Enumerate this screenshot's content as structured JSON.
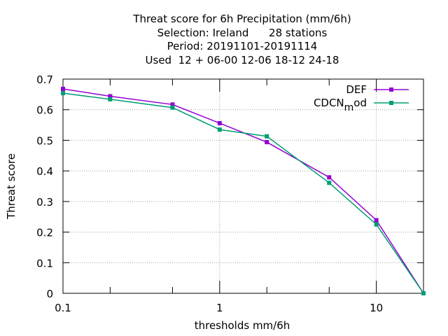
{
  "chart_data": {
    "type": "line",
    "title_lines": [
      "Threat score  for 6h Precipitation (mm/6h)",
      "Selection: Ireland      28 stations",
      "Period: 20191101-20191114",
      "Used  12 + 06-00 12-06 18-12 24-18"
    ],
    "xlabel": "thresholds mm/6h",
    "ylabel": "Threat score",
    "x_scale": "log",
    "xlim": [
      0.1,
      20
    ],
    "ylim": [
      0,
      0.7
    ],
    "x_ticks": [
      0.1,
      1,
      10
    ],
    "x_tick_labels": [
      "0.1",
      "1",
      "10"
    ],
    "x_minor_ticks": [
      0.2,
      0.5,
      2,
      5,
      20
    ],
    "y_ticks": [
      0,
      0.1,
      0.2,
      0.3,
      0.4,
      0.5,
      0.6,
      0.7
    ],
    "y_tick_labels": [
      "0",
      "0.1",
      "0.2",
      "0.3",
      "0.4",
      "0.5",
      "0.6",
      "0.7"
    ],
    "grid": true,
    "legend_position": "top-right",
    "x": [
      0.1,
      0.2,
      0.5,
      1,
      2,
      5,
      10,
      20
    ],
    "series": [
      {
        "name": "DEF",
        "color": "#9400d3",
        "values": [
          0.668,
          0.644,
          0.617,
          0.556,
          0.494,
          0.379,
          0.239,
          0.0
        ]
      },
      {
        "name_main": "CDCN",
        "name_sub": "m",
        "name_rest": "od",
        "color": "#009e73",
        "values": [
          0.654,
          0.634,
          0.607,
          0.535,
          0.513,
          0.361,
          0.225,
          0.0
        ]
      }
    ]
  }
}
